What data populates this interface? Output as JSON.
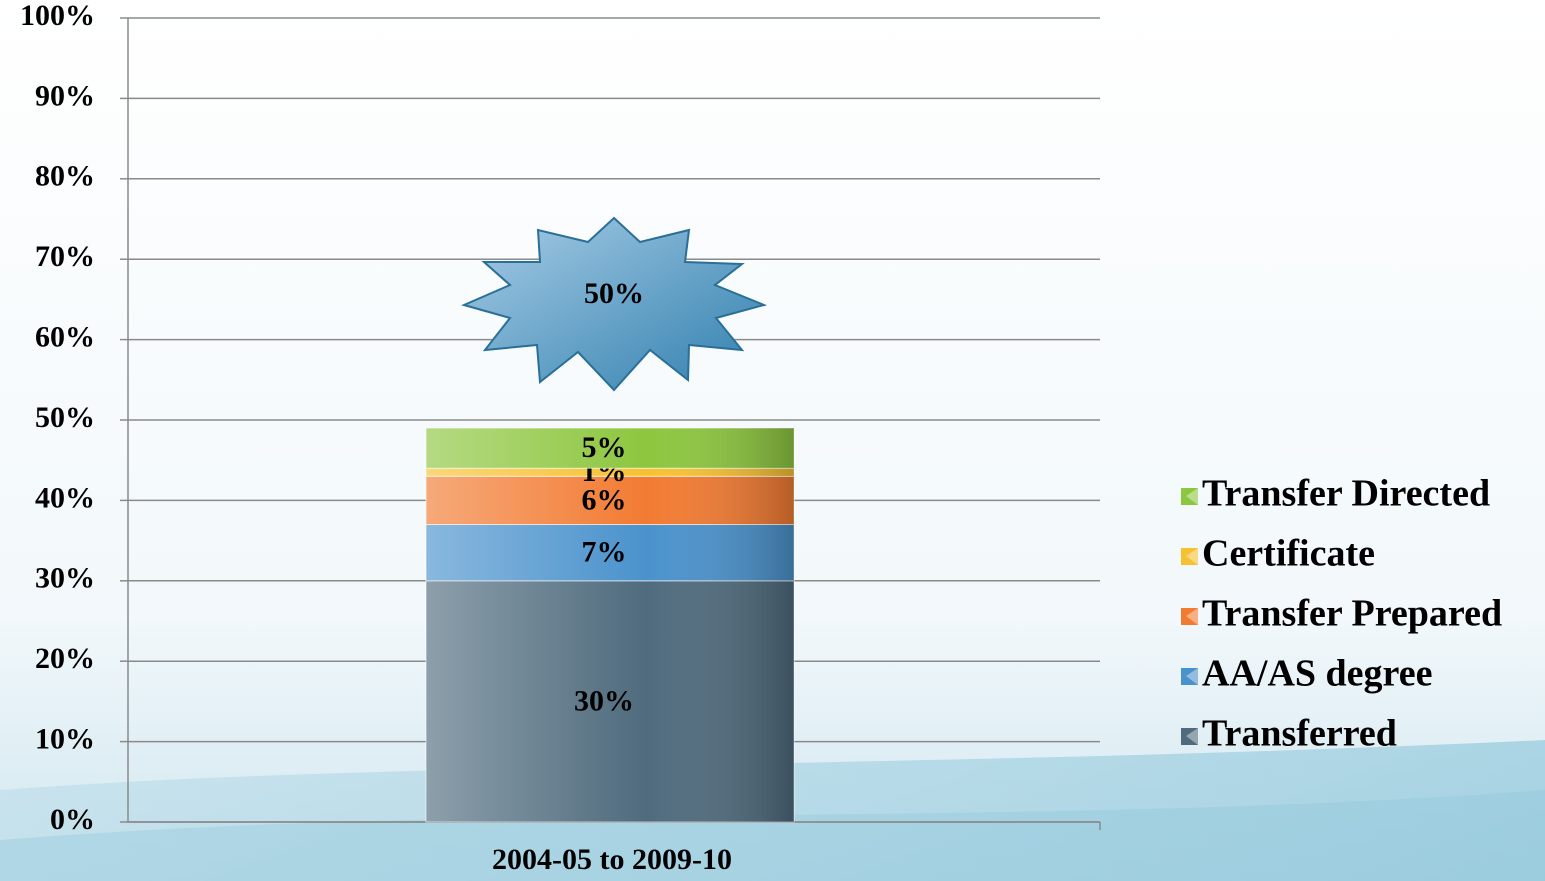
{
  "chart_data": {
    "type": "stacked_bar",
    "categories": [
      "2004-05 to 2009-10"
    ],
    "series": [
      {
        "name": "Transferred",
        "color": "#4f6b7d",
        "values": [
          30
        ],
        "value_labels": [
          "30%"
        ]
      },
      {
        "name": "AA/AS degree",
        "color": "#4a92cc",
        "values": [
          7
        ],
        "value_labels": [
          "7%"
        ]
      },
      {
        "name": "Transfer Prepared",
        "color": "#f27b32",
        "values": [
          6
        ],
        "value_labels": [
          "6%"
        ]
      },
      {
        "name": "Certificate",
        "color": "#f6c232",
        "values": [
          1
        ],
        "value_labels": [
          "1%"
        ]
      },
      {
        "name": "Transfer Directed",
        "color": "#8dc63f",
        "values": [
          5
        ],
        "value_labels": [
          "5%"
        ]
      }
    ],
    "annotation": "50%",
    "ylim": [
      0,
      100
    ],
    "yticks": [
      {
        "value": 0,
        "label": "0%"
      },
      {
        "value": 10,
        "label": "10%"
      },
      {
        "value": 20,
        "label": "20%"
      },
      {
        "value": 30,
        "label": "30%"
      },
      {
        "value": 40,
        "label": "40%"
      },
      {
        "value": 50,
        "label": "50%"
      },
      {
        "value": 60,
        "label": "60%"
      },
      {
        "value": 70,
        "label": "70%"
      },
      {
        "value": 80,
        "label": "80%"
      },
      {
        "value": 90,
        "label": "90%"
      },
      {
        "value": 100,
        "label": "100%"
      }
    ],
    "grid": true,
    "legend": "right"
  }
}
